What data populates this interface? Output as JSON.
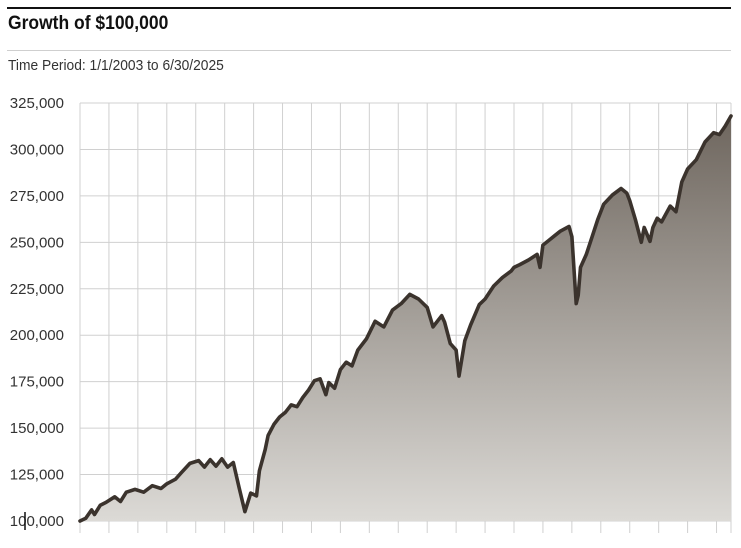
{
  "header": {
    "title": "Growth of $100,000",
    "subtitle": "Time Period: 1/1/2003 to 6/30/2025"
  },
  "colors": {
    "line": "#3b332d",
    "fill_top": "#6e665e",
    "fill_bottom": "#dcdad6",
    "grid": "#d0d0d0",
    "frame": "#111111"
  },
  "chart_data": {
    "type": "area",
    "title": "Growth of $100,000",
    "subtitle": "Time Period: 1/1/2003 to 6/30/2025",
    "xlabel": "",
    "ylabel": "",
    "xlim": [
      2003.0,
      2025.5
    ],
    "ylim": [
      100000,
      325000
    ],
    "y_ticks": [
      100000,
      125000,
      150000,
      175000,
      200000,
      225000,
      250000,
      275000,
      300000,
      325000
    ],
    "y_tick_labels": [
      "100,000",
      "125,000",
      "150,000",
      "175,000",
      "200,000",
      "225,000",
      "250,000",
      "275,000",
      "300,000",
      "325,000"
    ],
    "x_gridlines": [
      2003,
      2004,
      2005,
      2006,
      2007,
      2008,
      2009,
      2010,
      2011,
      2012,
      2013,
      2014,
      2015,
      2016,
      2017,
      2018,
      2019,
      2020,
      2021,
      2022,
      2023,
      2024,
      2025
    ],
    "grid": true,
    "legend": "none",
    "series": [
      {
        "x": [
          2003.0,
          2003.2,
          2003.4,
          2003.5,
          2003.7,
          2003.9,
          2004.2,
          2004.4,
          2004.6,
          2004.9,
          2005.2,
          2005.5,
          2005.8,
          2006.0,
          2006.3,
          2006.5,
          2006.8,
          2007.1,
          2007.3,
          2007.5,
          2007.7,
          2007.9,
          2008.1,
          2008.3,
          2008.5,
          2008.7,
          2008.9,
          2009.1,
          2009.2,
          2009.4,
          2009.5,
          2009.7,
          2009.9,
          2010.1,
          2010.3,
          2010.5,
          2010.7,
          2010.9,
          2011.1,
          2011.3,
          2011.5,
          2011.6,
          2011.8,
          2012.0,
          2012.2,
          2012.4,
          2012.6,
          2012.9,
          2013.2,
          2013.5,
          2013.8,
          2014.1,
          2014.4,
          2014.7,
          2015.0,
          2015.2,
          2015.5,
          2015.6,
          2015.8,
          2016.0,
          2016.1,
          2016.3,
          2016.5,
          2016.8,
          2017.0,
          2017.3,
          2017.6,
          2017.9,
          2018.0,
          2018.2,
          2018.5,
          2018.8,
          2018.9,
          2019.0,
          2019.2,
          2019.4,
          2019.6,
          2019.9,
          2020.0,
          2020.15,
          2020.22,
          2020.3,
          2020.5,
          2020.7,
          2020.9,
          2021.1,
          2021.4,
          2021.7,
          2021.9,
          2022.0,
          2022.2,
          2022.4,
          2022.5,
          2022.7,
          2022.8,
          2022.95,
          2023.1,
          2023.4,
          2023.6,
          2023.8,
          2024.0,
          2024.3,
          2024.6,
          2024.9,
          2025.1,
          2025.3,
          2025.5
        ],
        "values": [
          100000,
          101500,
          106000,
          103500,
          108500,
          110000,
          113000,
          110500,
          115500,
          117000,
          115500,
          119000,
          117500,
          120000,
          122500,
          126000,
          131000,
          132500,
          129000,
          133000,
          129500,
          133500,
          129000,
          131500,
          118000,
          105000,
          115000,
          113500,
          127000,
          138500,
          146000,
          152000,
          156000,
          158500,
          162500,
          161500,
          166500,
          170500,
          175500,
          176500,
          168000,
          174500,
          171500,
          181500,
          185500,
          183500,
          192000,
          198000,
          207500,
          204500,
          213500,
          217000,
          222000,
          219500,
          215000,
          204500,
          210500,
          207000,
          195500,
          192000,
          178000,
          197000,
          205500,
          216500,
          219500,
          226500,
          231000,
          234500,
          236500,
          238000,
          240500,
          243500,
          236500,
          248500,
          251000,
          253500,
          256000,
          258500,
          253000,
          217000,
          221500,
          236500,
          243500,
          253000,
          262500,
          270500,
          275500,
          279000,
          276500,
          272500,
          262000,
          250000,
          258000,
          250500,
          258000,
          263000,
          261000,
          269500,
          266500,
          282500,
          289500,
          294500,
          304000,
          309000,
          308000,
          312500,
          318000
        ]
      }
    ]
  }
}
